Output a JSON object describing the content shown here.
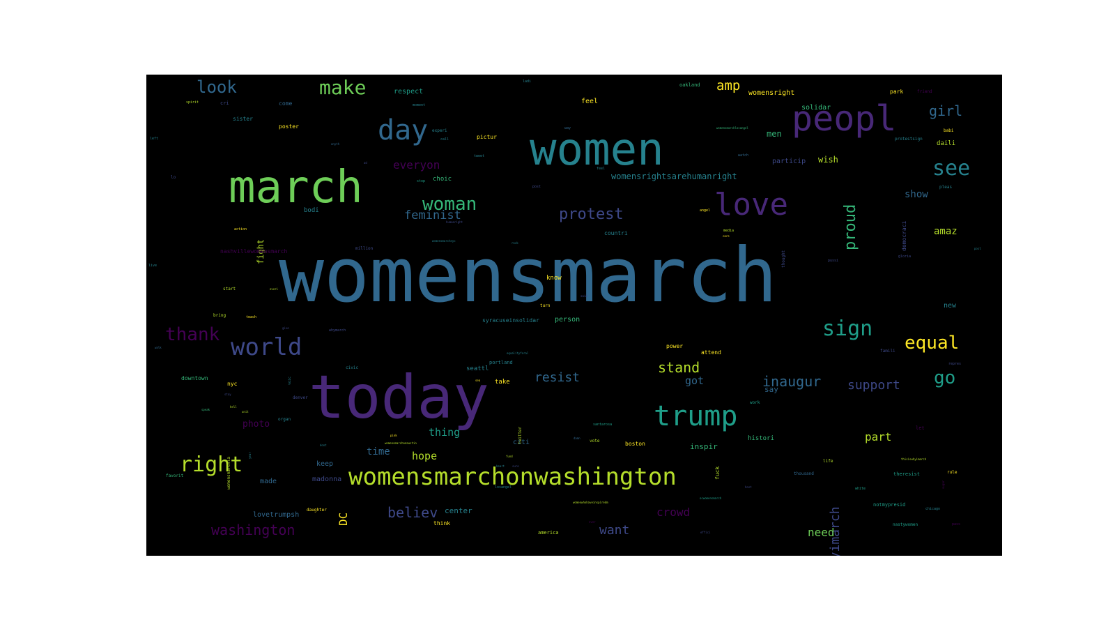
{
  "colors": {
    "background": "#000000",
    "page": "#ffffff",
    "palette": [
      "#440154",
      "#482878",
      "#3e4989",
      "#31688e",
      "#26828e",
      "#1f9e89",
      "#35b779",
      "#6ece58",
      "#b5de2b",
      "#fde725"
    ]
  },
  "words": [
    {
      "text": "womensmarch",
      "color": "#31688e"
    },
    {
      "text": "today",
      "color": "#482878"
    },
    {
      "text": "women",
      "color": "#26828e"
    },
    {
      "text": "march",
      "color": "#6ece58"
    },
    {
      "text": "peopl",
      "color": "#482878"
    },
    {
      "text": "love",
      "color": "#482878"
    },
    {
      "text": "trump",
      "color": "#1f9e89"
    },
    {
      "text": "womensmarchonwashington",
      "color": "#b5de2b"
    },
    {
      "text": "day",
      "color": "#31688e"
    },
    {
      "text": "world",
      "color": "#3e4989"
    },
    {
      "text": "make",
      "color": "#6ece58"
    },
    {
      "text": "look",
      "color": "#31688e"
    },
    {
      "text": "right",
      "color": "#b5de2b"
    },
    {
      "text": "sign",
      "color": "#1f9e89"
    },
    {
      "text": "see",
      "color": "#26828e"
    },
    {
      "text": "woman",
      "color": "#35b779"
    },
    {
      "text": "protest",
      "color": "#3e4989"
    },
    {
      "text": "equal",
      "color": "#fde725"
    },
    {
      "text": "thank",
      "color": "#440154"
    },
    {
      "text": "girl",
      "color": "#31688e"
    },
    {
      "text": "go",
      "color": "#1f9e89"
    },
    {
      "text": "stand",
      "color": "#b5de2b"
    },
    {
      "text": "washington",
      "color": "#440154"
    },
    {
      "text": "believ",
      "color": "#3e4989"
    },
    {
      "text": "resist",
      "color": "#31688e"
    },
    {
      "text": "inaugur",
      "color": "#31688e"
    },
    {
      "text": "support",
      "color": "#3e4989"
    },
    {
      "text": "feminist",
      "color": "#31688e"
    },
    {
      "text": "everyon",
      "color": "#440154"
    },
    {
      "text": "amp",
      "color": "#fde725"
    },
    {
      "text": "proud",
      "color": "#35b779"
    },
    {
      "text": "whyimarch",
      "color": "#3e4989"
    },
    {
      "text": "crowd",
      "color": "#440154"
    },
    {
      "text": "want",
      "color": "#3e4989"
    },
    {
      "text": "need",
      "color": "#6ece58"
    },
    {
      "text": "part",
      "color": "#b5de2b"
    },
    {
      "text": "thing",
      "color": "#1f9e89"
    },
    {
      "text": "hope",
      "color": "#b5de2b"
    },
    {
      "text": "time",
      "color": "#31688e"
    },
    {
      "text": "photo",
      "color": "#440154"
    },
    {
      "text": "got",
      "color": "#31688e"
    },
    {
      "text": "show",
      "color": "#31688e"
    },
    {
      "text": "amaz",
      "color": "#b5de2b"
    },
    {
      "text": "DC",
      "color": "#fde725"
    },
    {
      "text": "womensrightsarehumanright",
      "color": "#26828e"
    },
    {
      "text": "wish",
      "color": "#b5de2b"
    },
    {
      "text": "particip",
      "color": "#3e4989"
    },
    {
      "text": "men",
      "color": "#35b779"
    },
    {
      "text": "fight",
      "color": "#b5de2b"
    },
    {
      "text": "respect",
      "color": "#1f9e89"
    },
    {
      "text": "feel",
      "color": "#fde725"
    },
    {
      "text": "womensright",
      "color": "#fde725"
    },
    {
      "text": "solidar",
      "color": "#35b779"
    },
    {
      "text": "say",
      "color": "#31688e"
    },
    {
      "text": "inspir",
      "color": "#35b779"
    },
    {
      "text": "center",
      "color": "#26828e"
    },
    {
      "text": "lovetrumpsh",
      "color": "#31688e"
    },
    {
      "text": "madonna",
      "color": "#3e4989"
    },
    {
      "text": "keep",
      "color": "#31688e"
    },
    {
      "text": "made",
      "color": "#31688e"
    },
    {
      "text": "citi",
      "color": "#31688e"
    },
    {
      "text": "histori",
      "color": "#35b779"
    },
    {
      "text": "seattl",
      "color": "#26828e"
    },
    {
      "text": "take",
      "color": "#fde725"
    },
    {
      "text": "boston",
      "color": "#fde725"
    },
    {
      "text": "person",
      "color": "#35b779"
    },
    {
      "text": "know",
      "color": "#fde725"
    },
    {
      "text": "choic",
      "color": "#35b779"
    },
    {
      "text": "bodi",
      "color": "#26828e"
    },
    {
      "text": "nashvillewomensmarch",
      "color": "#440154"
    },
    {
      "text": "syracuseinsolidar",
      "color": "#26828e"
    },
    {
      "text": "power",
      "color": "#fde725"
    },
    {
      "text": "attend",
      "color": "#fde725"
    },
    {
      "text": "new",
      "color": "#26828e"
    },
    {
      "text": "daili",
      "color": "#b5de2b"
    },
    {
      "text": "poster",
      "color": "#fde725"
    },
    {
      "text": "sister",
      "color": "#26828e"
    },
    {
      "text": "come",
      "color": "#31688e"
    },
    {
      "text": "pictur",
      "color": "#fde725"
    },
    {
      "text": "oakland",
      "color": "#35b779"
    },
    {
      "text": "park",
      "color": "#fde725"
    },
    {
      "text": "countri",
      "color": "#26828e"
    },
    {
      "text": "democraci",
      "color": "#3e4989"
    },
    {
      "text": "portland",
      "color": "#26828e"
    },
    {
      "text": "nyc",
      "color": "#fde725"
    },
    {
      "text": "downtown",
      "color": "#35b779"
    },
    {
      "text": "organ",
      "color": "#26828e"
    },
    {
      "text": "daughter",
      "color": "#fde725"
    },
    {
      "text": "think",
      "color": "#fde725"
    },
    {
      "text": "america",
      "color": "#b5de2b"
    },
    {
      "text": "notmypresid",
      "color": "#1f9e89"
    },
    {
      "text": "theresist",
      "color": "#1f9e89"
    },
    {
      "text": "thousand",
      "color": "#31688e"
    },
    {
      "text": "fuck",
      "color": "#b5de2b"
    },
    {
      "text": "womensmarchla",
      "color": "#b5de2b"
    },
    {
      "text": "vote",
      "color": "#b5de2b"
    },
    {
      "text": "civic",
      "color": "#26828e"
    },
    {
      "text": "turn",
      "color": "#fde725"
    },
    {
      "text": "start",
      "color": "#b5de2b"
    },
    {
      "text": "bring",
      "color": "#b5de2b"
    },
    {
      "text": "teach",
      "color": "#fde725"
    },
    {
      "text": "favorit",
      "color": "#35b779"
    },
    {
      "text": "million",
      "color": "#3e4989"
    },
    {
      "text": "twitter",
      "color": "#b5de2b"
    },
    {
      "text": "rule",
      "color": "#fde725"
    },
    {
      "text": "protestsign",
      "color": "#26828e"
    },
    {
      "text": "babi",
      "color": "#fde725"
    },
    {
      "text": "pleas",
      "color": "#26828e"
    },
    {
      "text": "life",
      "color": "#b5de2b"
    },
    {
      "text": "nastywomen",
      "color": "#1f9e89"
    },
    {
      "text": "losangel",
      "color": "#26828e"
    },
    {
      "text": "whymarch",
      "color": "#3e4989"
    },
    {
      "text": "thought",
      "color": "#3e4989"
    },
    {
      "text": "ladi",
      "color": "#26828e"
    },
    {
      "text": "spirit",
      "color": "#b5de2b"
    },
    {
      "text": "left",
      "color": "#26828e"
    },
    {
      "text": "moment",
      "color": "#26828e"
    },
    {
      "text": "call",
      "color": "#26828e"
    },
    {
      "text": "tweet",
      "color": "#26828e"
    },
    {
      "text": "way",
      "color": "#31688e"
    },
    {
      "text": "experi",
      "color": "#26828e"
    },
    {
      "text": "stop",
      "color": "#1f9e89"
    },
    {
      "text": "post",
      "color": "#3e4989"
    },
    {
      "text": "media",
      "color": "#b5de2b"
    },
    {
      "text": "watch",
      "color": "#31688e"
    },
    {
      "text": "angel",
      "color": "#fde725"
    },
    {
      "text": "action",
      "color": "#fde725"
    },
    {
      "text": "gloria",
      "color": "#3e4989"
    },
    {
      "text": "pussi",
      "color": "#3e4989"
    },
    {
      "text": "famili",
      "color": "#3e4989"
    },
    {
      "text": "work",
      "color": "#1f9e89"
    },
    {
      "text": "white",
      "color": "#1f9e89"
    },
    {
      "text": "chicago",
      "color": "#26828e"
    },
    {
      "text": "santarosa",
      "color": "#1f9e89"
    },
    {
      "text": "denver",
      "color": "#3e4989"
    },
    {
      "text": "friend",
      "color": "#440154"
    },
    {
      "text": "let",
      "color": "#440154"
    },
    {
      "text": "anyth",
      "color": "#31688e"
    },
    {
      "text": "lo",
      "color": "#3e4989"
    },
    {
      "text": "cri",
      "color": "#3e4989"
    },
    {
      "text": "humanright",
      "color": "#3e4989"
    },
    {
      "text": "everi",
      "color": "#b5de2b"
    },
    {
      "text": "unit",
      "color": "#b5de2b"
    },
    {
      "text": "equalityforal",
      "color": "#26828e"
    },
    {
      "text": "thisiswhyimarch",
      "color": "#b5de2b"
    },
    {
      "text": "womenwhohaveinspiredm",
      "color": "#b5de2b"
    },
    {
      "text": "ocwomensmarch",
      "color": "#1f9e89"
    },
    {
      "text": "womensmarchonaustin",
      "color": "#b5de2b"
    },
    {
      "text": "womensmarchnyc",
      "color": "#26828e"
    },
    {
      "text": "womensmarchlosangel",
      "color": "#35b779"
    },
    {
      "text": "pink",
      "color": "#fde725"
    },
    {
      "text": "live",
      "color": "#26828e"
    },
    {
      "text": "feel2",
      "color": "#26828e"
    },
    {
      "text": "repres",
      "color": "#3e4989"
    },
    {
      "text": "rock",
      "color": "#26828e"
    },
    {
      "text": "ad",
      "color": "#3e4989"
    },
    {
      "text": "care",
      "color": "#fde725"
    },
    {
      "text": "stay",
      "color": "#3e4989"
    },
    {
      "text": "hell",
      "color": "#b5de2b"
    },
    {
      "text": "give",
      "color": "#3e4989"
    },
    {
      "text": "voic",
      "color": "#26828e"
    },
    {
      "text": "speak",
      "color": "#35b779"
    },
    {
      "text": "dont",
      "color": "#26828e"
    },
    {
      "text": "year",
      "color": "#26828e"
    },
    {
      "text": "fund",
      "color": "#b5de2b"
    },
    {
      "text": "heart",
      "color": "#26828e"
    },
    {
      "text": "sure",
      "color": "#3e4989"
    },
    {
      "text": "said",
      "color": "#3e4989"
    },
    {
      "text": "sea",
      "color": "#fde725"
    },
    {
      "text": "damn",
      "color": "#31688e"
    },
    {
      "text": "effici",
      "color": "#3e4989"
    },
    {
      "text": "ever",
      "color": "#440154"
    },
    {
      "text": "walk",
      "color": "#31688e"
    },
    {
      "text": "host",
      "color": "#3e4989"
    },
    {
      "text": "sugar",
      "color": "#440154"
    },
    {
      "text": "post2",
      "color": "#26828e"
    },
    {
      "text": "pass",
      "color": "#440154"
    }
  ]
}
